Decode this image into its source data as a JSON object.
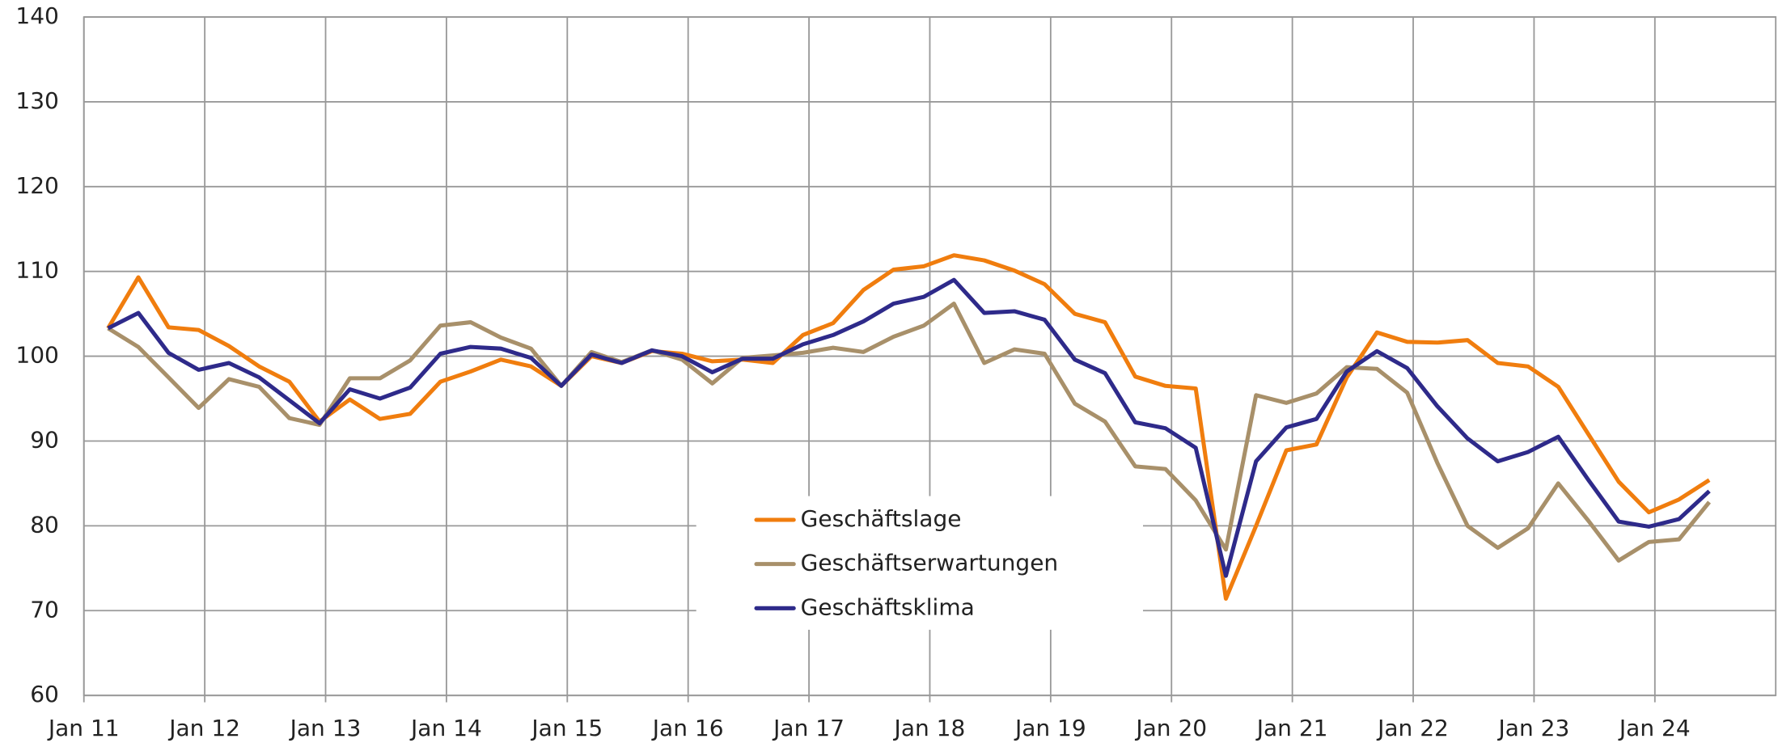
{
  "chart_data": {
    "type": "line",
    "x": [
      2011.2,
      2011.45,
      2011.7,
      2011.95,
      2012.2,
      2012.45,
      2012.7,
      2012.95,
      2013.2,
      2013.45,
      2013.7,
      2013.95,
      2014.2,
      2014.45,
      2014.7,
      2014.95,
      2015.2,
      2015.45,
      2015.7,
      2015.95,
      2016.2,
      2016.45,
      2016.7,
      2016.95,
      2017.2,
      2017.45,
      2017.7,
      2017.95,
      2018.2,
      2018.45,
      2018.7,
      2018.95,
      2019.2,
      2019.45,
      2019.7,
      2019.95,
      2020.2,
      2020.45,
      2020.7,
      2020.95,
      2021.2,
      2021.45,
      2021.7,
      2021.95,
      2022.2,
      2022.45,
      2022.7,
      2022.95,
      2023.2,
      2023.45,
      2023.7,
      2023.95,
      2024.2,
      2024.45
    ],
    "series": [
      {
        "name": "Geschäftslage",
        "color": "#f07d0e",
        "values": [
          103.3,
          109.3,
          103.4,
          103.1,
          101.2,
          98.8,
          97.0,
          92.3,
          94.9,
          92.6,
          93.2,
          97.0,
          98.2,
          99.6,
          98.8,
          96.5,
          100.0,
          99.2,
          100.6,
          100.3,
          99.4,
          99.6,
          99.2,
          102.5,
          103.9,
          107.8,
          110.2,
          110.6,
          111.9,
          111.3,
          110.1,
          108.5,
          105.0,
          104.0,
          97.6,
          96.5,
          96.2,
          71.4,
          80.0,
          88.9,
          89.6,
          97.5,
          102.8,
          101.7,
          101.6,
          101.9,
          99.2,
          98.8,
          96.4,
          90.8,
          85.2,
          81.6,
          83.1,
          85.4
        ]
      },
      {
        "name": "Geschäftserwartungen",
        "color": "#a8906a",
        "values": [
          103.3,
          101.1,
          97.5,
          93.9,
          97.3,
          96.4,
          92.7,
          91.9,
          97.4,
          97.4,
          99.5,
          103.6,
          104.0,
          102.2,
          100.9,
          96.5,
          100.5,
          99.3,
          100.7,
          99.6,
          96.8,
          99.8,
          100.1,
          100.4,
          101.0,
          100.5,
          102.3,
          103.6,
          106.2,
          99.2,
          100.8,
          100.3,
          94.4,
          92.3,
          87.0,
          86.7,
          83.0,
          77.2,
          95.4,
          94.5,
          95.6,
          98.7,
          98.5,
          95.7,
          87.4,
          80.0,
          77.4,
          79.7,
          85.0,
          80.6,
          75.9,
          78.1,
          78.4,
          82.8
        ]
      },
      {
        "name": "Geschäftsklima",
        "color": "#2e2a8a",
        "values": [
          103.3,
          105.1,
          100.4,
          98.4,
          99.2,
          97.5,
          94.8,
          92.1,
          96.1,
          95.0,
          96.3,
          100.3,
          101.1,
          100.9,
          99.8,
          96.5,
          100.2,
          99.2,
          100.7,
          100.0,
          98.1,
          99.7,
          99.7,
          101.4,
          102.5,
          104.1,
          106.2,
          107.0,
          109.0,
          105.1,
          105.3,
          104.3,
          99.6,
          98.0,
          92.2,
          91.5,
          89.2,
          74.1,
          87.6,
          91.6,
          92.6,
          98.2,
          100.6,
          98.6,
          94.1,
          90.3,
          87.6,
          88.7,
          90.5,
          85.4,
          80.5,
          79.9,
          80.8,
          84.1
        ]
      }
    ],
    "xlim": [
      2011,
      2025
    ],
    "xticks": [
      {
        "value": 2011,
        "label": "Jan 11"
      },
      {
        "value": 2012,
        "label": "Jan 12"
      },
      {
        "value": 2013,
        "label": "Jan 13"
      },
      {
        "value": 2014,
        "label": "Jan 14"
      },
      {
        "value": 2015,
        "label": "Jan 15"
      },
      {
        "value": 2016,
        "label": "Jan 16"
      },
      {
        "value": 2017,
        "label": "Jan 17"
      },
      {
        "value": 2018,
        "label": "Jan 18"
      },
      {
        "value": 2019,
        "label": "Jan 19"
      },
      {
        "value": 2020,
        "label": "Jan 20"
      },
      {
        "value": 2021,
        "label": "Jan 21"
      },
      {
        "value": 2022,
        "label": "Jan 22"
      },
      {
        "value": 2023,
        "label": "Jan 23"
      },
      {
        "value": 2024,
        "label": "Jan 24"
      }
    ],
    "ylim": [
      60,
      140
    ],
    "yticks": [
      60,
      70,
      80,
      90,
      100,
      110,
      120,
      130,
      140
    ],
    "grid": true,
    "legend": "bottom-center"
  }
}
